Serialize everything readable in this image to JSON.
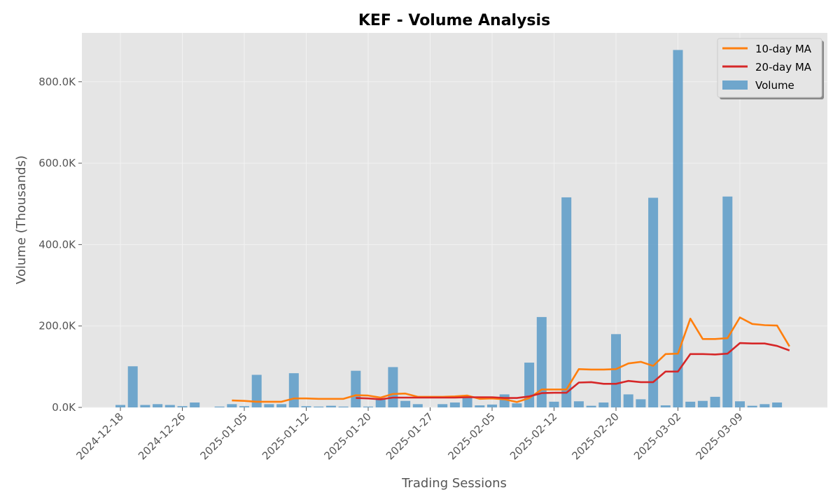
{
  "chart_data": {
    "type": "bar",
    "title": "KEF - Volume Analysis",
    "xlabel": "Trading Sessions",
    "ylabel": "Volume (Thousands)",
    "ylim": [
      0,
      920
    ],
    "y_ticks": [
      0,
      200,
      400,
      600,
      800
    ],
    "y_tick_labels": [
      "0.0K",
      "200.0K",
      "400.0K",
      "600.0K",
      "800.0K"
    ],
    "x_tick_positions": [
      0,
      5,
      10,
      15,
      20,
      25,
      30,
      35,
      40,
      45,
      50
    ],
    "x_tick_labels": [
      "2024-12-18",
      "2024-12-26",
      "2025-01-05",
      "2025-01-12",
      "2025-01-20",
      "2025-01-27",
      "2025-02-05",
      "2025-02-12",
      "2025-02-20",
      "2025-03-02",
      "2025-03-09"
    ],
    "grid": true,
    "legend_position": "top-right",
    "legend": [
      "10-day MA",
      "20-day MA",
      "Volume"
    ],
    "colors": {
      "volume": "#5b9bc8",
      "ma10": "#ff7f0e",
      "ma20": "#d62728",
      "plot_bg": "#e5e5e5",
      "grid": "#f2f2f2"
    },
    "series": [
      {
        "name": "Volume",
        "kind": "bar",
        "values": [
          6,
          101,
          6,
          8,
          6,
          3,
          12,
          0,
          2,
          8,
          3,
          80,
          8,
          8,
          84,
          3,
          2,
          4,
          2,
          90,
          2,
          22,
          99,
          16,
          8,
          0,
          8,
          12,
          26,
          5,
          7,
          32,
          10,
          110,
          222,
          14,
          516,
          15,
          4,
          12,
          180,
          32,
          20,
          515,
          5,
          878,
          14,
          16,
          26,
          518,
          15,
          4,
          8,
          12
        ]
      },
      {
        "name": "10-day MA",
        "kind": "line",
        "x_start": 9,
        "values": [
          17,
          16,
          14,
          14,
          14,
          22,
          22,
          21,
          21,
          21,
          30,
          29,
          24,
          33,
          34,
          26,
          26,
          26,
          27,
          29,
          21,
          22,
          20,
          13,
          23,
          44,
          44,
          44,
          94,
          93,
          93,
          94,
          108,
          112,
          102,
          131,
          132,
          218,
          168,
          168,
          170,
          221,
          205,
          202,
          201,
          150
        ]
      },
      {
        "name": "20-day MA",
        "kind": "line",
        "x_start": 19,
        "values": [
          23,
          22,
          20,
          24,
          24,
          24,
          24,
          24,
          24,
          25,
          25,
          25,
          23,
          23,
          27,
          35,
          36,
          36,
          61,
          62,
          58,
          58,
          65,
          62,
          62,
          88,
          88,
          131,
          131,
          130,
          132,
          158,
          157,
          157,
          151,
          140
        ]
      }
    ]
  }
}
